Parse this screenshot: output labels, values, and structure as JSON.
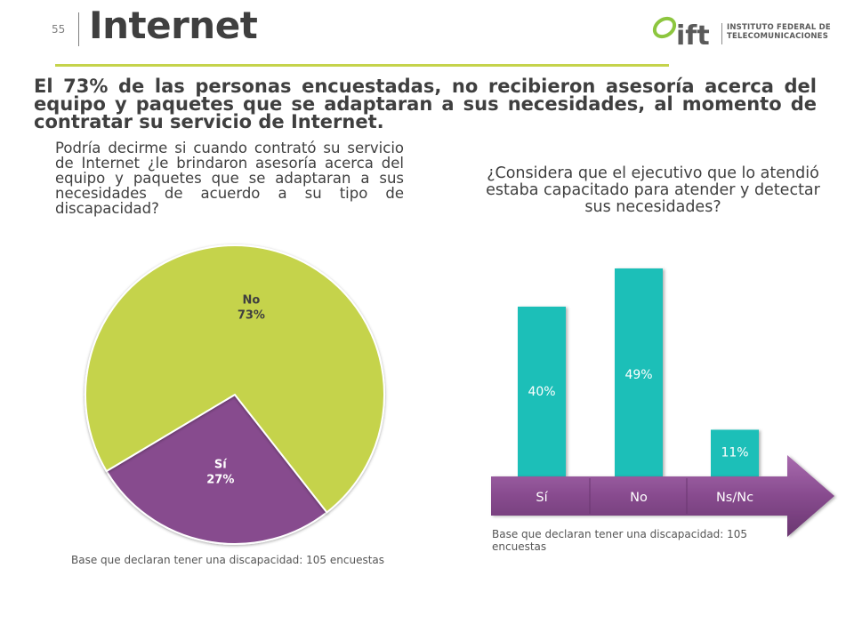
{
  "header": {
    "page_number": "55",
    "title": "Internet"
  },
  "logo": {
    "brand": "ift",
    "name_line1": "INSTITUTO FEDERAL DE",
    "name_line2": "TELECOMUNICACIONES"
  },
  "headline": "El 73% de las personas encuestadas, no recibieron asesoría acerca del equipo y paquetes que se adaptaran a sus necesidades, al momento de contratar su servicio de Internet.",
  "colors": {
    "green": "#c5d34b",
    "purple": "#874b8e",
    "teal": "#1fbfb8"
  },
  "chart_data": [
    {
      "type": "pie",
      "question": "Podría decirme si cuando contrató su servicio de Internet ¿le brindaron asesoría acerca del equipo y paquetes que se adaptaran a sus necesidades de acuerdo a su tipo de discapacidad?",
      "slices": [
        {
          "label": "No",
          "value": 73,
          "display": "73%",
          "color": "#c5d34b"
        },
        {
          "label": "Sí",
          "value": 27,
          "display": "27%",
          "color": "#874b8e"
        }
      ],
      "note": "Base que declaran tener una discapacidad: 105 encuestas"
    },
    {
      "type": "bar",
      "question": "¿Considera que el ejecutivo que lo atendió estaba capacitado para atender y detectar sus necesidades?",
      "categories": [
        "Sí",
        "No",
        "Ns/Nc"
      ],
      "values": [
        40,
        49,
        11
      ],
      "labels": [
        "40%",
        "49%",
        "11%"
      ],
      "ylim": [
        0,
        49
      ],
      "note": "Base que declaran tener una discapacidad: 105 encuestas"
    }
  ]
}
